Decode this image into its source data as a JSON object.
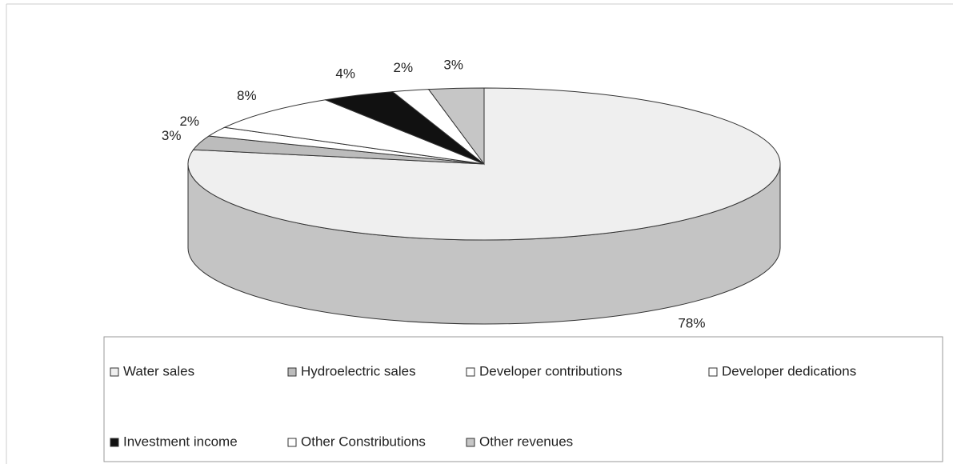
{
  "chart_data": {
    "type": "pie3d",
    "categories": [
      "Water sales",
      "Hydroelectric sales",
      "Developer contributions",
      "Developer dedications",
      "Investment income",
      "Other Constributions",
      "Other revenues"
    ],
    "values": [
      78,
      3,
      2,
      8,
      4,
      2,
      3
    ],
    "value_labels": [
      "78%",
      "3%",
      "2%",
      "8%",
      "4%",
      "2%",
      "3%"
    ],
    "colors": [
      "#efefef",
      "#bcbcbc",
      "#ffffff",
      "#ffffff",
      "#111111",
      "#ffffff",
      "#c6c6c6"
    ],
    "legend": "bottom"
  }
}
